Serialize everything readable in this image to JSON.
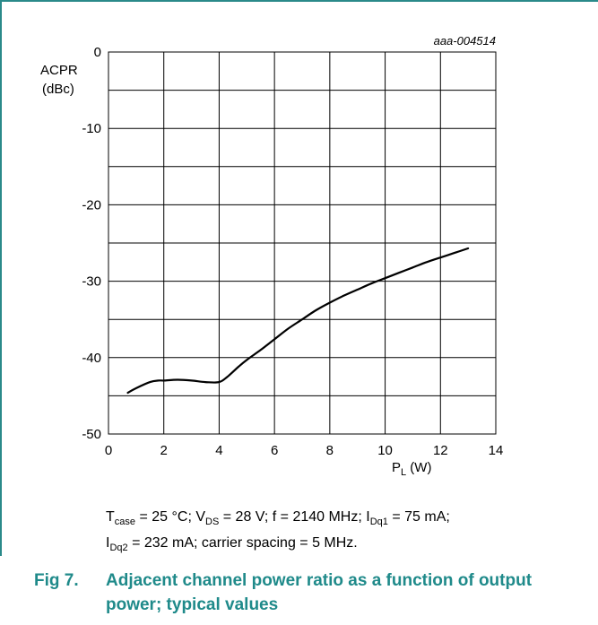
{
  "figure_id": "aaa-004514",
  "conditions": {
    "line1": [
      {
        "t": "T"
      },
      {
        "sub": "case"
      },
      {
        "t": " = 25 °C; V"
      },
      {
        "sub": "DS"
      },
      {
        "t": " = 28 V; f = 2140 MHz; I"
      },
      {
        "sub": "Dq1"
      },
      {
        "t": " = 75 mA;"
      }
    ],
    "line2": [
      {
        "t": "I"
      },
      {
        "sub": "Dq2"
      },
      {
        "t": " = 232 mA; carrier spacing = 5 MHz."
      }
    ]
  },
  "caption": {
    "number": "Fig 7.",
    "text": "Adjacent channel power ratio as a function of output power; typical values"
  },
  "colors": {
    "accent": "#1f8a8a",
    "curve": "#000000",
    "grid": "#000000"
  },
  "chart_data": {
    "type": "line",
    "xlabel": "P_L (W)",
    "ylabel": "ACPR\n(dBc)",
    "xlim": [
      0,
      14
    ],
    "ylim": [
      -50,
      0
    ],
    "xticks": [
      0,
      2,
      4,
      6,
      8,
      10,
      12,
      14
    ],
    "yticks": [
      0,
      -10,
      -20,
      -30,
      -40,
      -50
    ],
    "grid": true,
    "series": [
      {
        "x": [
          0.7,
          1.0,
          1.5,
          1.8,
          2.0,
          2.5,
          3.0,
          3.5,
          4.0,
          4.3,
          4.7,
          5.0,
          5.5,
          6.0,
          6.5,
          7.0,
          7.5,
          8.0,
          8.5,
          9.0,
          9.5,
          10.0,
          10.5,
          11.0,
          11.5,
          12.0,
          12.5,
          13.0
        ],
        "y": [
          -44.6,
          -44.0,
          -43.2,
          -43.0,
          -43.0,
          -42.9,
          -43.0,
          -43.2,
          -43.2,
          -42.5,
          -41.2,
          -40.3,
          -39.0,
          -37.6,
          -36.2,
          -35.0,
          -33.8,
          -32.8,
          -31.9,
          -31.1,
          -30.3,
          -29.6,
          -28.9,
          -28.2,
          -27.5,
          -26.9,
          -26.3,
          -25.7
        ]
      }
    ]
  }
}
